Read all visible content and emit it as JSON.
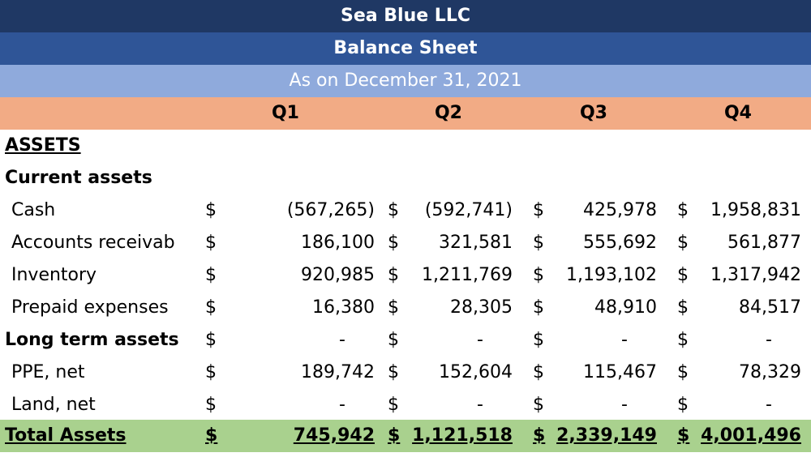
{
  "header": {
    "company": "Sea Blue LLC",
    "title": "Balance Sheet",
    "date": "As on December 31, 2021"
  },
  "table": {
    "columns": [
      "Q1",
      "Q2",
      "Q3",
      "Q4"
    ],
    "section": "ASSETS",
    "groups": [
      {
        "heading": "Current assets",
        "rows": [
          {
            "label": "Cash",
            "cells": [
              [
                "$",
                "(567,265)"
              ],
              [
                "$",
                "(592,741)"
              ],
              [
                "$",
                "425,978"
              ],
              [
                "$",
                "1,958,831"
              ]
            ]
          },
          {
            "label": "Accounts receivab",
            "cells": [
              [
                "$",
                "186,100"
              ],
              [
                "$",
                "321,581"
              ],
              [
                "$",
                "555,692"
              ],
              [
                "$",
                "561,877"
              ]
            ]
          },
          {
            "label": "Inventory",
            "cells": [
              [
                "$",
                "920,985"
              ],
              [
                "$",
                "1,211,769"
              ],
              [
                "$",
                "1,193,102"
              ],
              [
                "$",
                "1,317,942"
              ]
            ]
          },
          {
            "label": "Prepaid expenses",
            "cells": [
              [
                "$",
                "16,380"
              ],
              [
                "$",
                "28,305"
              ],
              [
                "$",
                "48,910"
              ],
              [
                "$",
                "84,517"
              ]
            ]
          }
        ]
      },
      {
        "heading": "Long term assets",
        "cells": [
          [
            "$",
            "-"
          ],
          [
            "$",
            "-"
          ],
          [
            "$",
            "-"
          ],
          [
            "$",
            "-"
          ]
        ],
        "rows": [
          {
            "label": "PPE, net",
            "cells": [
              [
                "$",
                "189,742"
              ],
              [
                "$",
                "152,604"
              ],
              [
                "$",
                "115,467"
              ],
              [
                "$",
                "78,329"
              ]
            ]
          },
          {
            "label": "Land, net",
            "cells": [
              [
                "$",
                "-"
              ],
              [
                "$",
                "-"
              ],
              [
                "$",
                "-"
              ],
              [
                "$",
                "-"
              ]
            ]
          }
        ]
      }
    ],
    "total": {
      "label": "Total Assets",
      "cells": [
        [
          "$",
          "745,942"
        ],
        [
          "$",
          "1,121,518"
        ],
        [
          "$",
          "2,339,149"
        ],
        [
          "$",
          "4,001,496"
        ]
      ]
    }
  }
}
